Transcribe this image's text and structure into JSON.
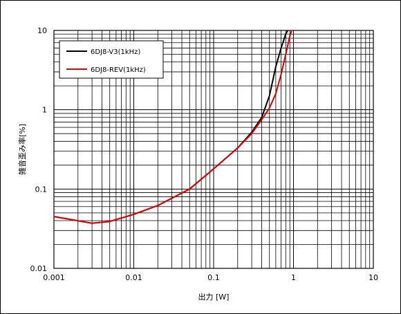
{
  "chart_data": {
    "type": "line",
    "title": "",
    "xlabel": "出力 [W]",
    "ylabel": "雑音歪み率[%]",
    "xscale": "log",
    "yscale": "log",
    "xlim": [
      0.001,
      10
    ],
    "ylim": [
      0.01,
      10
    ],
    "x_tick_labels": [
      "0.001",
      "0.01",
      "0.1",
      "1",
      "10"
    ],
    "y_tick_labels": [
      "0.01",
      "0.1",
      "1",
      "10"
    ],
    "grid": true,
    "legend_position": "top-left",
    "series": [
      {
        "name": "6DJ8-V3(1kHz)",
        "color": "#000000",
        "x": [
          0.001,
          0.003,
          0.005,
          0.01,
          0.02,
          0.05,
          0.1,
          0.2,
          0.3,
          0.4,
          0.5,
          0.6,
          0.7,
          0.8,
          0.85
        ],
        "y": [
          0.045,
          0.037,
          0.039,
          0.048,
          0.062,
          0.1,
          0.18,
          0.33,
          0.52,
          0.8,
          1.5,
          3.5,
          6.0,
          9.0,
          10.0
        ]
      },
      {
        "name": "6DJ8-REV(1kHz)",
        "color": "#dd0000",
        "x": [
          0.001,
          0.003,
          0.005,
          0.01,
          0.02,
          0.05,
          0.1,
          0.2,
          0.3,
          0.4,
          0.5,
          0.6,
          0.7,
          0.8,
          0.9,
          0.95
        ],
        "y": [
          0.045,
          0.037,
          0.039,
          0.048,
          0.062,
          0.1,
          0.18,
          0.33,
          0.5,
          0.75,
          1.05,
          1.6,
          2.8,
          5.0,
          8.5,
          10.0
        ]
      }
    ]
  }
}
